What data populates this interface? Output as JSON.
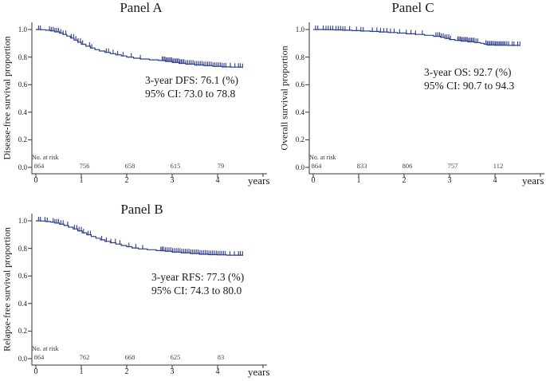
{
  "figure": {
    "background_color": "#ffffff",
    "text_color": "#1a1a1a",
    "axis_color": "#333333",
    "curve_color": "#2d3e8c"
  },
  "chart_data": [
    {
      "type": "line",
      "subtype": "kaplan-meier",
      "title": "Panel A",
      "xlabel": "",
      "ylabel": "Disease-free survival proportion",
      "x_unit_label": "years",
      "x_tick_labels": [
        "0",
        "1",
        "2",
        "3",
        "4"
      ],
      "y_tick_labels": [
        "1.0",
        "0.8",
        "0.6",
        "0.4",
        "0.2",
        "0.0"
      ],
      "xlim": [
        0,
        5.05
      ],
      "ylim": [
        0.0,
        1.0
      ],
      "grid": false,
      "legend": "none",
      "line_color": "#2d3e8c",
      "annotation_line1": "3-year DFS: 76.1 (%)",
      "annotation_line2": "95% CI: 73.0 to 78.8",
      "risk_label": "No. at risk",
      "risk_counts": [
        864,
        756,
        658,
        615,
        79
      ],
      "series": [
        {
          "name": "Disease-free survival",
          "step_points": [
            [
              0,
              1.0
            ],
            [
              0.12,
              0.998
            ],
            [
              0.22,
              0.995
            ],
            [
              0.32,
              0.99
            ],
            [
              0.42,
              0.983
            ],
            [
              0.52,
              0.974
            ],
            [
              0.6,
              0.964
            ],
            [
              0.68,
              0.952
            ],
            [
              0.76,
              0.938
            ],
            [
              0.84,
              0.923
            ],
            [
              0.92,
              0.908
            ],
            [
              1.0,
              0.893
            ],
            [
              1.1,
              0.879
            ],
            [
              1.2,
              0.866
            ],
            [
              1.3,
              0.854
            ],
            [
              1.4,
              0.844
            ],
            [
              1.52,
              0.834
            ],
            [
              1.64,
              0.825
            ],
            [
              1.76,
              0.816
            ],
            [
              1.88,
              0.808
            ],
            [
              2.0,
              0.8
            ],
            [
              2.15,
              0.792
            ],
            [
              2.3,
              0.786
            ],
            [
              2.5,
              0.78
            ],
            [
              2.7,
              0.775
            ],
            [
              2.85,
              0.769
            ],
            [
              3.0,
              0.761
            ],
            [
              3.15,
              0.755
            ],
            [
              3.3,
              0.749
            ],
            [
              3.5,
              0.743
            ],
            [
              3.7,
              0.738
            ],
            [
              3.9,
              0.733
            ],
            [
              4.1,
              0.729
            ],
            [
              4.3,
              0.727
            ],
            [
              4.55,
              0.724
            ]
          ]
        }
      ],
      "censor_marks_x": [
        0.06,
        0.1,
        0.3,
        0.34,
        0.38,
        0.42,
        0.46,
        0.5,
        0.55,
        0.6,
        0.66,
        0.78,
        0.83,
        0.88,
        0.93,
        0.98,
        1.03,
        1.18,
        1.23,
        1.55,
        1.6,
        1.7,
        1.8,
        1.92,
        2.1,
        2.3,
        2.78,
        2.81,
        2.84,
        2.87,
        2.9,
        2.93,
        2.96,
        2.99,
        3.02,
        3.05,
        3.08,
        3.11,
        3.14,
        3.17,
        3.2,
        3.23,
        3.26,
        3.3,
        3.34,
        3.38,
        3.42,
        3.46,
        3.5,
        3.54,
        3.58,
        3.62,
        3.66,
        3.7,
        3.74,
        3.78,
        3.82,
        3.86,
        3.9,
        3.94,
        3.98,
        4.02,
        4.06,
        4.1,
        4.14,
        4.18,
        4.28,
        4.38,
        4.46,
        4.5,
        4.55
      ]
    },
    {
      "type": "line",
      "subtype": "kaplan-meier",
      "title": "Panel C",
      "xlabel": "",
      "ylabel": "Overall survival proportion",
      "x_unit_label": "years",
      "x_tick_labels": [
        "0",
        "1",
        "2",
        "3",
        "4"
      ],
      "y_tick_labels": [
        "1.0",
        "0.8",
        "0.6",
        "0.4",
        "0.2",
        "0.0"
      ],
      "xlim": [
        0,
        5.05
      ],
      "ylim": [
        0.0,
        1.0
      ],
      "grid": false,
      "legend": "none",
      "line_color": "#2d3e8c",
      "annotation_line1": "3-year OS: 92.7 (%)",
      "annotation_line2": "95% CI: 90.7 to 94.3",
      "risk_label": "No. at risk",
      "risk_counts": [
        864,
        833,
        806,
        757,
        112
      ],
      "series": [
        {
          "name": "Overall survival",
          "step_points": [
            [
              0,
              1.0
            ],
            [
              0.25,
              0.999
            ],
            [
              0.45,
              0.997
            ],
            [
              0.65,
              0.995
            ],
            [
              0.85,
              0.992
            ],
            [
              1.05,
              0.989
            ],
            [
              1.25,
              0.986
            ],
            [
              1.45,
              0.982
            ],
            [
              1.65,
              0.978
            ],
            [
              1.85,
              0.974
            ],
            [
              2.05,
              0.969
            ],
            [
              2.25,
              0.964
            ],
            [
              2.45,
              0.958
            ],
            [
              2.65,
              0.951
            ],
            [
              2.8,
              0.944
            ],
            [
              2.9,
              0.936
            ],
            [
              3.0,
              0.927
            ],
            [
              3.12,
              0.921
            ],
            [
              3.25,
              0.916
            ],
            [
              3.4,
              0.911
            ],
            [
              3.55,
              0.906
            ],
            [
              3.68,
              0.9
            ],
            [
              3.76,
              0.893
            ],
            [
              3.83,
              0.888
            ],
            [
              4.0,
              0.886
            ],
            [
              4.3,
              0.885
            ],
            [
              4.55,
              0.885
            ]
          ]
        }
      ],
      "censor_marks_x": [
        0.05,
        0.1,
        0.22,
        0.28,
        0.33,
        0.38,
        0.43,
        0.5,
        0.55,
        0.6,
        0.65,
        0.7,
        0.8,
        0.95,
        1.05,
        1.1,
        1.3,
        1.4,
        1.48,
        1.55,
        1.62,
        1.7,
        1.78,
        1.9,
        2.05,
        2.15,
        2.25,
        2.4,
        2.7,
        2.74,
        2.78,
        2.82,
        2.86,
        2.9,
        2.94,
        2.98,
        3.02,
        3.18,
        3.21,
        3.24,
        3.27,
        3.3,
        3.33,
        3.36,
        3.39,
        3.42,
        3.45,
        3.48,
        3.51,
        3.54,
        3.58,
        3.62,
        3.8,
        3.83,
        3.86,
        3.89,
        3.92,
        3.95,
        3.98,
        4.01,
        4.04,
        4.07,
        4.1,
        4.13,
        4.16,
        4.19,
        4.22,
        4.26,
        4.3,
        4.38,
        4.42,
        4.5,
        4.55
      ]
    },
    {
      "type": "line",
      "subtype": "kaplan-meier",
      "title": "Panel B",
      "xlabel": "",
      "ylabel": "Relapse-free survival proportion",
      "x_unit_label": "years",
      "x_tick_labels": [
        "0",
        "1",
        "2",
        "3",
        "4"
      ],
      "y_tick_labels": [
        "1.0",
        "0.8",
        "0.6",
        "0.4",
        "0.2",
        "0.0"
      ],
      "xlim": [
        0,
        5.05
      ],
      "ylim": [
        0.0,
        1.0
      ],
      "grid": false,
      "legend": "none",
      "line_color": "#2d3e8c",
      "annotation_line1": "3-year RFS: 77.3 (%)",
      "annotation_line2": "95% CI: 74.3 to 80.0",
      "risk_label": "No. at risk",
      "risk_counts": [
        864,
        762,
        668,
        625,
        83
      ],
      "series": [
        {
          "name": "Relapse-free survival",
          "step_points": [
            [
              0,
              1.0
            ],
            [
              0.12,
              0.998
            ],
            [
              0.22,
              0.995
            ],
            [
              0.32,
              0.991
            ],
            [
              0.42,
              0.984
            ],
            [
              0.52,
              0.976
            ],
            [
              0.62,
              0.966
            ],
            [
              0.72,
              0.954
            ],
            [
              0.82,
              0.941
            ],
            [
              0.92,
              0.927
            ],
            [
              1.02,
              0.913
            ],
            [
              1.12,
              0.899
            ],
            [
              1.22,
              0.886
            ],
            [
              1.32,
              0.874
            ],
            [
              1.42,
              0.862
            ],
            [
              1.52,
              0.851
            ],
            [
              1.64,
              0.841
            ],
            [
              1.76,
              0.831
            ],
            [
              1.88,
              0.821
            ],
            [
              2.0,
              0.812
            ],
            [
              2.12,
              0.803
            ],
            [
              2.26,
              0.796
            ],
            [
              2.45,
              0.79
            ],
            [
              2.65,
              0.784
            ],
            [
              2.85,
              0.779
            ],
            [
              3.0,
              0.773
            ],
            [
              3.2,
              0.768
            ],
            [
              3.4,
              0.763
            ],
            [
              3.6,
              0.758
            ],
            [
              3.8,
              0.755
            ],
            [
              4.0,
              0.753
            ],
            [
              4.2,
              0.751
            ],
            [
              4.55,
              0.75
            ]
          ]
        }
      ],
      "censor_marks_x": [
        0.06,
        0.1,
        0.2,
        0.25,
        0.38,
        0.42,
        0.46,
        0.5,
        0.55,
        0.6,
        0.7,
        0.85,
        0.9,
        0.95,
        1.0,
        1.05,
        1.15,
        1.2,
        1.45,
        1.55,
        1.65,
        1.75,
        1.85,
        2.05,
        2.2,
        2.35,
        2.75,
        2.78,
        2.81,
        2.85,
        2.89,
        2.93,
        2.97,
        3.01,
        3.05,
        3.09,
        3.13,
        3.17,
        3.21,
        3.25,
        3.29,
        3.33,
        3.37,
        3.41,
        3.45,
        3.49,
        3.53,
        3.57,
        3.61,
        3.65,
        3.69,
        3.73,
        3.77,
        3.81,
        3.85,
        3.89,
        3.93,
        3.97,
        4.01,
        4.05,
        4.09,
        4.13,
        4.17,
        4.27,
        4.37,
        4.46,
        4.5,
        4.55
      ]
    }
  ]
}
